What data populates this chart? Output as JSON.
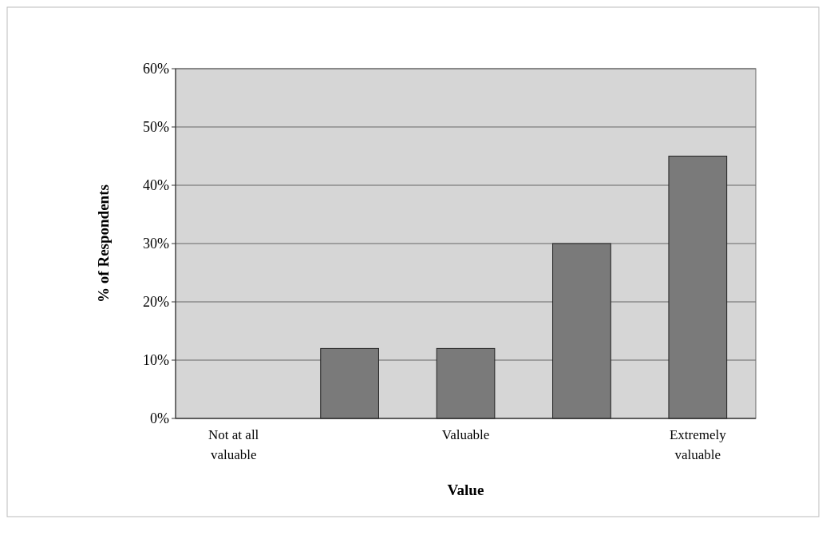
{
  "chart_data": {
    "type": "bar",
    "xlabel": "Value",
    "ylabel": "% of Respondents",
    "categories": [
      "Not at all valuable",
      null,
      "Valuable",
      null,
      "Extremely valuable"
    ],
    "values": [
      0,
      12,
      12,
      30,
      45
    ],
    "color": "#7a7a7a",
    "ylim": [
      0,
      60
    ],
    "yticks": [
      {
        "value": 0,
        "label": "0%"
      },
      {
        "value": 10,
        "label": "10%"
      },
      {
        "value": 20,
        "label": "20%"
      },
      {
        "value": 30,
        "label": "30%"
      },
      {
        "value": 40,
        "label": "40%"
      },
      {
        "value": 50,
        "label": "50%"
      },
      {
        "value": 60,
        "label": "60%"
      }
    ],
    "grid": "y"
  }
}
